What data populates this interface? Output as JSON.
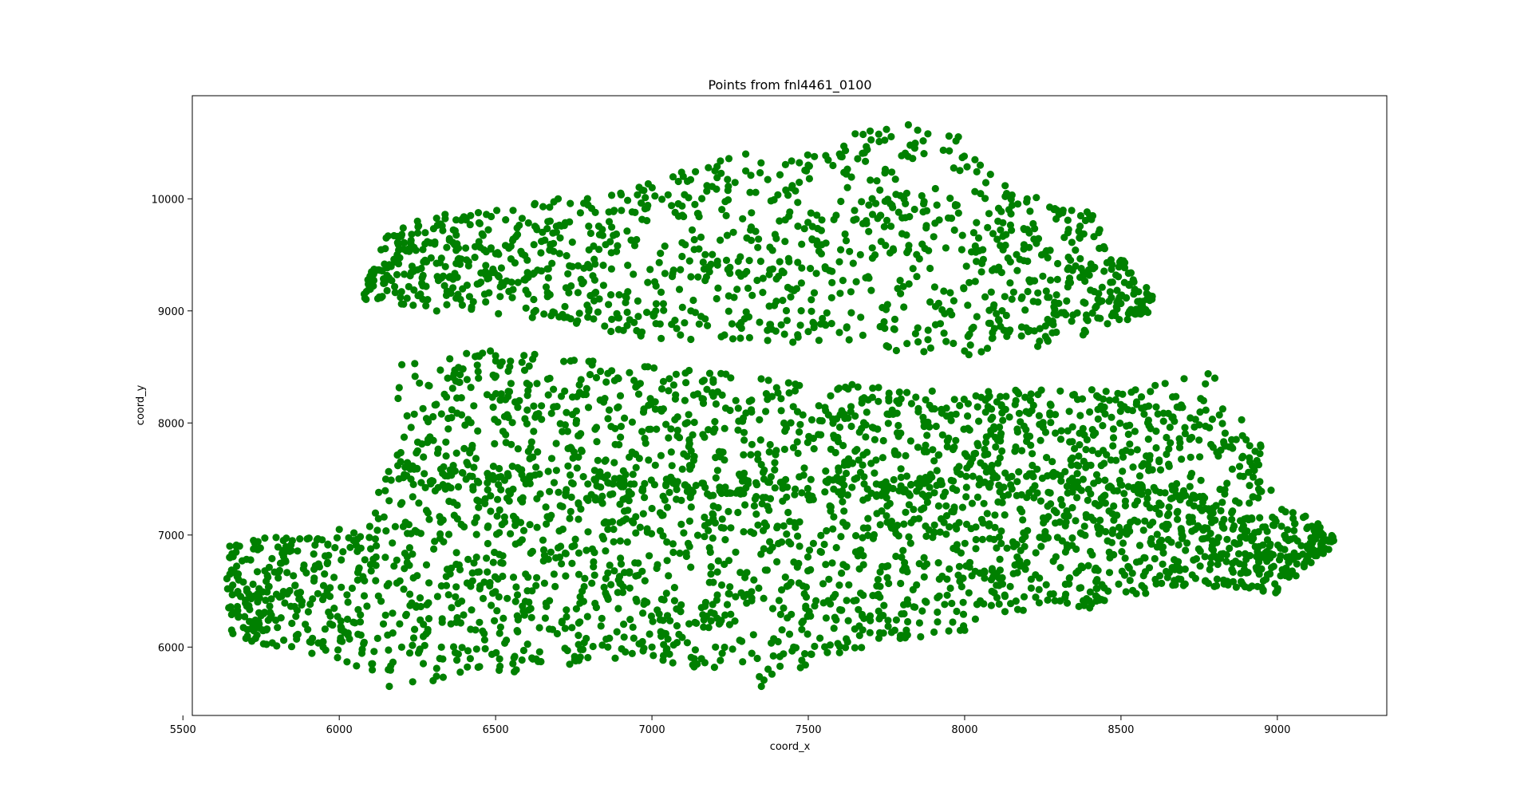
{
  "chart_data": {
    "type": "scatter",
    "title": "Points from fnl4461_0100",
    "xlabel": "coord_x",
    "ylabel": "coord_y",
    "xlim": [
      5530,
      9350
    ],
    "ylim": [
      5390,
      10920
    ],
    "x_ticks": [
      5500,
      6000,
      6500,
      7000,
      7500,
      8000,
      8500,
      9000
    ],
    "y_ticks": [
      6000,
      7000,
      8000,
      9000,
      10000
    ],
    "grid": false,
    "legend": "none",
    "marker_color": "#008000",
    "point_count_shown": 4461,
    "regions": [
      {
        "name": "upper lobe",
        "x_range": [
          6080,
          8600
        ],
        "y_range": [
          9000,
          10670
        ]
      },
      {
        "name": "middle band",
        "x_range": [
          6180,
          8950
        ],
        "y_range": [
          7300,
          8650
        ]
      },
      {
        "name": "lower body",
        "x_range": [
          5640,
          9180
        ],
        "y_range": [
          5640,
          7600
        ]
      }
    ],
    "sample_points": [
      {
        "x": 5650,
        "y": 6900
      },
      {
        "x": 5660,
        "y": 6120
      },
      {
        "x": 5700,
        "y": 6420
      },
      {
        "x": 5750,
        "y": 6280
      },
      {
        "x": 5800,
        "y": 6010
      },
      {
        "x": 5850,
        "y": 6950
      },
      {
        "x": 6000,
        "y": 7050
      },
      {
        "x": 6080,
        "y": 9150
      },
      {
        "x": 6150,
        "y": 9650
      },
      {
        "x": 6160,
        "y": 5650
      },
      {
        "x": 6200,
        "y": 8520
      },
      {
        "x": 6250,
        "y": 9800
      },
      {
        "x": 6300,
        "y": 5700
      },
      {
        "x": 6420,
        "y": 9850
      },
      {
        "x": 6500,
        "y": 8600
      },
      {
        "x": 6560,
        "y": 5780
      },
      {
        "x": 6700,
        "y": 10000
      },
      {
        "x": 6900,
        "y": 10050
      },
      {
        "x": 7000,
        "y": 6000
      },
      {
        "x": 7100,
        "y": 10200
      },
      {
        "x": 7300,
        "y": 10400
      },
      {
        "x": 7350,
        "y": 5650
      },
      {
        "x": 7500,
        "y": 10300
      },
      {
        "x": 7600,
        "y": 10400
      },
      {
        "x": 7650,
        "y": 10580
      },
      {
        "x": 7750,
        "y": 10620
      },
      {
        "x": 7820,
        "y": 10660
      },
      {
        "x": 7950,
        "y": 10560
      },
      {
        "x": 8050,
        "y": 10300
      },
      {
        "x": 8200,
        "y": 10000
      },
      {
        "x": 8400,
        "y": 9850
      },
      {
        "x": 8500,
        "y": 9450
      },
      {
        "x": 8600,
        "y": 9130
      },
      {
        "x": 8800,
        "y": 8400
      },
      {
        "x": 8900,
        "y": 7850
      },
      {
        "x": 8980,
        "y": 7400
      },
      {
        "x": 9050,
        "y": 7200
      },
      {
        "x": 9130,
        "y": 7100
      },
      {
        "x": 9180,
        "y": 6950
      },
      {
        "x": 9000,
        "y": 6500
      },
      {
        "x": 8700,
        "y": 6550
      },
      {
        "x": 8400,
        "y": 6350
      },
      {
        "x": 8000,
        "y": 6150
      },
      {
        "x": 7600,
        "y": 5950
      },
      {
        "x": 7200,
        "y": 5820
      }
    ]
  }
}
